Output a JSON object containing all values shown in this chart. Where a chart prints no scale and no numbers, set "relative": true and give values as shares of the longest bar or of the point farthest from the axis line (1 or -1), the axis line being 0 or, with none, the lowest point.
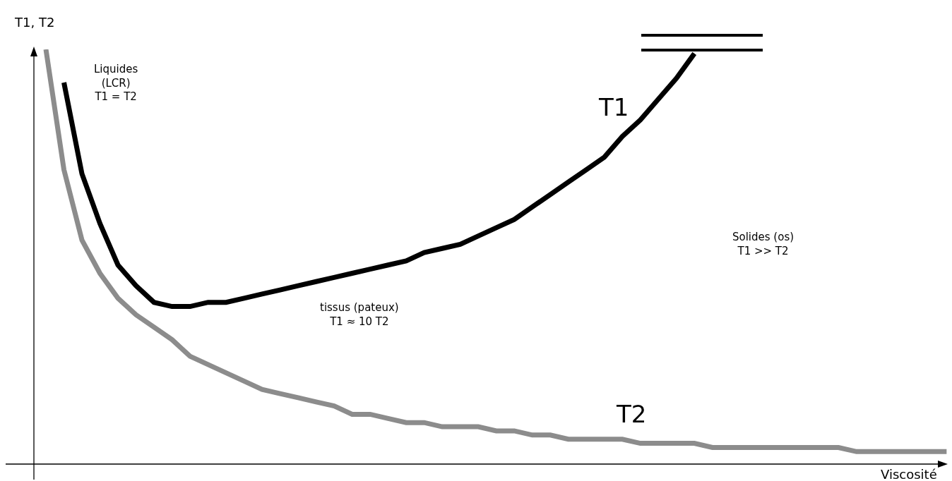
{
  "chart_data": {
    "type": "line",
    "relative": true,
    "xlabel": "Viscosité",
    "ylabel": "T1, T2",
    "categories": [
      null,
      null,
      null,
      null,
      null,
      null,
      null,
      null,
      null,
      null,
      null,
      null,
      null,
      null,
      null,
      null,
      null,
      null,
      null,
      null,
      null,
      null,
      null,
      null,
      null,
      null,
      null,
      null,
      null,
      null,
      null,
      null,
      null,
      null,
      null,
      null,
      null,
      null,
      null,
      null,
      null,
      null,
      null,
      null,
      null,
      null,
      null,
      null,
      null,
      null,
      null
    ],
    "series": [
      {
        "name": "T1",
        "color": "#000000",
        "values": [
          null,
          0.92,
          0.7,
          0.58,
          0.48,
          0.43,
          0.39,
          0.38,
          0.38,
          0.39,
          0.39,
          0.4,
          0.41,
          0.42,
          0.43,
          0.44,
          0.45,
          0.46,
          0.47,
          0.48,
          0.49,
          0.51,
          0.52,
          0.53,
          0.55,
          0.57,
          0.59,
          0.62,
          0.65,
          0.68,
          0.71,
          0.74,
          0.79,
          0.83,
          0.88,
          0.93,
          0.99,
          null,
          null,
          null,
          null,
          null,
          null,
          null,
          null,
          null,
          null,
          null,
          null,
          null,
          null
        ]
      },
      {
        "name": "T2",
        "color": "#8c8c8c",
        "values": [
          1.0,
          0.71,
          0.54,
          0.46,
          0.4,
          0.36,
          0.33,
          0.3,
          0.26,
          0.24,
          0.22,
          0.2,
          0.18,
          0.17,
          0.16,
          0.15,
          0.14,
          0.12,
          0.12,
          0.11,
          0.1,
          0.1,
          0.09,
          0.09,
          0.09,
          0.08,
          0.08,
          0.07,
          0.07,
          0.06,
          0.06,
          0.06,
          0.06,
          0.05,
          0.05,
          0.05,
          0.05,
          0.04,
          0.04,
          0.04,
          0.04,
          0.04,
          0.04,
          0.04,
          0.04,
          0.03,
          0.03,
          0.03,
          0.03,
          0.03,
          0.03
        ]
      }
    ],
    "annotations": [
      "Liquides\n(LCR)\nT1 = T2",
      "tissus (pateux)\nT1 ≈ 10 T2",
      "Solides (os)\nT1 >> T2"
    ],
    "legend": false,
    "grid": false,
    "line_style": "solid",
    "marker": "none"
  }
}
